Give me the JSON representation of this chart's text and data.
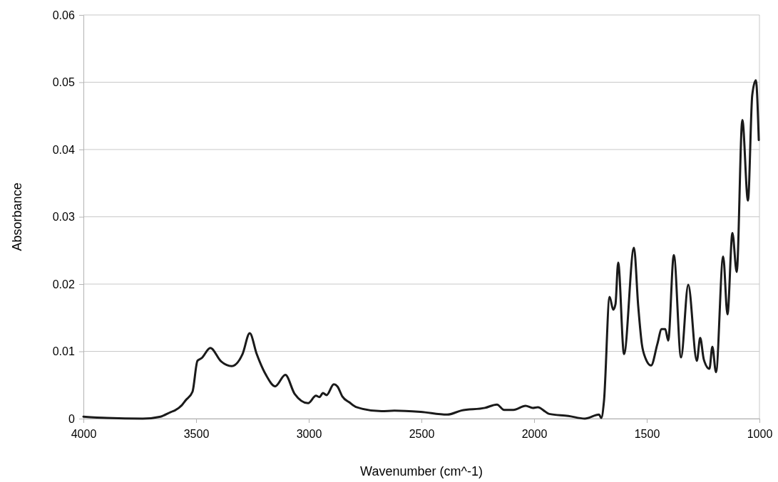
{
  "chart_data": {
    "type": "line",
    "xlabel": "Wavenumber (cm^-1)",
    "ylabel": "Absorbance",
    "xlim": [
      4000,
      1000
    ],
    "xticks": [
      4000,
      3500,
      3000,
      2500,
      2000,
      1500,
      1000
    ],
    "ylim": [
      0,
      0.06
    ],
    "yticks": [
      0,
      0.01,
      0.02,
      0.03,
      0.04,
      0.05,
      0.06
    ],
    "grid": "y",
    "marker": "none",
    "line_style": "solid",
    "series": [
      {
        "color": "#1a1a1a",
        "x": [
          4000,
          3896,
          3737,
          3658,
          3611,
          3595,
          3563,
          3547,
          3516,
          3494,
          3475,
          3437,
          3389,
          3342,
          3294,
          3262,
          3231,
          3190,
          3149,
          3104,
          3063,
          3003,
          2968,
          2953,
          2937,
          2921,
          2889,
          2873,
          2851,
          2819,
          2788,
          2677,
          2620,
          2503,
          2386,
          2323,
          2218,
          2165,
          2133,
          2092,
          2038,
          2006,
          1984,
          1933,
          1848,
          1775,
          1712,
          1702,
          1690,
          1665,
          1649,
          1639,
          1627,
          1601,
          1557,
          1538,
          1522,
          1506,
          1481,
          1453,
          1434,
          1418,
          1405,
          1380,
          1348,
          1316,
          1278,
          1263,
          1247,
          1222,
          1209,
          1193,
          1161,
          1142,
          1120,
          1101,
          1076,
          1051,
          1032,
          1016,
          1003
        ],
        "values": [
          0.0003,
          0.0001,
          0,
          0.0003,
          0.001,
          0.0012,
          0.002,
          0.0027,
          0.004,
          0.0086,
          0.009,
          0.0105,
          0.0085,
          0.0078,
          0.0096,
          0.0127,
          0.0096,
          0.0065,
          0.0048,
          0.0065,
          0.0037,
          0.0023,
          0.0034,
          0.0032,
          0.0038,
          0.0035,
          0.0051,
          0.0048,
          0.0033,
          0.0024,
          0.0017,
          0.0011,
          0.0012,
          0.001,
          0.0006,
          0.0012,
          0.0016,
          0.0021,
          0.0013,
          0.0013,
          0.0019,
          0.0016,
          0.0017,
          0.0007,
          0.0004,
          0,
          0.0006,
          0.0001,
          0.0026,
          0.0181,
          0.0162,
          0.017,
          0.0232,
          0.0096,
          0.0254,
          0.0167,
          0.0111,
          0.009,
          0.0079,
          0.0111,
          0.0133,
          0.0133,
          0.0116,
          0.0243,
          0.0091,
          0.0199,
          0.0086,
          0.012,
          0.0088,
          0.0074,
          0.0107,
          0.0069,
          0.0241,
          0.0155,
          0.0276,
          0.0218,
          0.0444,
          0.0324,
          0.0481,
          0.0503,
          0.0414
        ]
      }
    ]
  }
}
